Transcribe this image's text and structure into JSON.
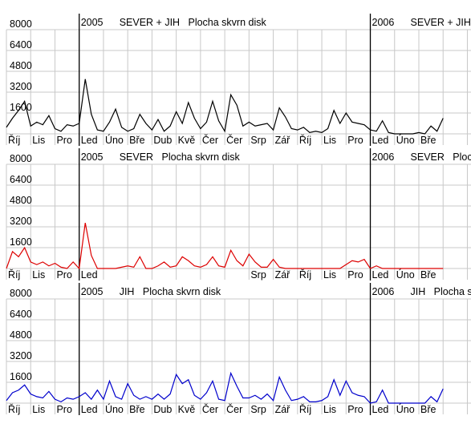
{
  "chart_data": [
    {
      "type": "line",
      "title": "SEVER + JIH   Plocha skvrn disk",
      "color": "#000000",
      "year_markers": [
        {
          "value": 3,
          "label": "2005"
        },
        {
          "value": 15,
          "label": "2006"
        }
      ],
      "xlim": [
        0,
        19.15
      ],
      "ylim": [
        0,
        8000
      ],
      "yticks": [
        1600,
        3200,
        4800,
        6400,
        8000
      ],
      "grid": true,
      "xticks": [
        {
          "value": 0,
          "label": "Říj"
        },
        {
          "value": 1,
          "label": "Lis"
        },
        {
          "value": 2,
          "label": "Pro"
        },
        {
          "value": 3,
          "label": "Led"
        },
        {
          "value": 4,
          "label": "Úno"
        },
        {
          "value": 5,
          "label": "Bře"
        },
        {
          "value": 6,
          "label": "Dub"
        },
        {
          "value": 7,
          "label": "Kvě"
        },
        {
          "value": 8,
          "label": "Čer"
        },
        {
          "value": 9,
          "label": "Čer"
        },
        {
          "value": 10,
          "label": "Srp"
        },
        {
          "value": 11,
          "label": "Zář"
        },
        {
          "value": 12,
          "label": "Říj"
        },
        {
          "value": 13,
          "label": "Lis"
        },
        {
          "value": 14,
          "label": "Pro"
        },
        {
          "value": 15,
          "label": "Led"
        },
        {
          "value": 16,
          "label": "Úno"
        },
        {
          "value": 17,
          "label": "Bře"
        },
        {
          "value": 18,
          "label": null
        },
        {
          "value": 19,
          "label": null
        }
      ],
      "x": [
        0,
        0.25,
        0.5,
        0.75,
        1,
        1.25,
        1.5,
        1.75,
        2,
        2.25,
        2.5,
        2.75,
        3,
        3.25,
        3.5,
        3.75,
        4,
        4.25,
        4.5,
        4.75,
        5,
        5.25,
        5.5,
        5.75,
        6,
        6.25,
        6.5,
        6.75,
        7,
        7.25,
        7.5,
        7.75,
        8,
        8.25,
        8.5,
        8.75,
        9,
        9.25,
        9.5,
        9.75,
        10,
        10.25,
        10.5,
        10.75,
        11,
        11.25,
        11.5,
        11.75,
        12,
        12.25,
        12.5,
        12.75,
        13,
        13.25,
        13.5,
        13.75,
        14,
        14.25,
        14.5,
        14.75,
        15,
        15.25,
        15.5,
        15.75,
        16,
        16.25,
        16.5,
        16.75,
        17,
        17.25,
        17.5,
        17.75,
        18
      ],
      "values": [
        500,
        1200,
        1800,
        2500,
        600,
        900,
        700,
        1400,
        400,
        200,
        700,
        600,
        800,
        4200,
        1500,
        300,
        200,
        900,
        1900,
        500,
        200,
        400,
        1500,
        800,
        300,
        1100,
        200,
        600,
        1700,
        800,
        2400,
        1200,
        400,
        900,
        2500,
        1000,
        200,
        3000,
        2200,
        600,
        900,
        600,
        700,
        800,
        300,
        2000,
        1300,
        400,
        300,
        500,
        100,
        200,
        100,
        400,
        1800,
        800,
        1600,
        900,
        800,
        700,
        300,
        200,
        1000,
        100,
        0,
        0,
        0,
        0,
        100,
        0,
        600,
        200,
        1200
      ]
    },
    {
      "type": "line",
      "title": "SEVER   Plocha skvrn disk",
      "color": "#dd0000",
      "year_markers": [
        {
          "value": 3,
          "label": "2005"
        },
        {
          "value": 15,
          "label": "2006"
        }
      ],
      "xlim": [
        0,
        19.15
      ],
      "ylim": [
        0,
        8000
      ],
      "yticks": [
        1600,
        3200,
        4800,
        6400,
        8000
      ],
      "grid": true,
      "xticks": [
        {
          "value": 0,
          "label": "Říj"
        },
        {
          "value": 1,
          "label": "Lis"
        },
        {
          "value": 2,
          "label": "Pro"
        },
        {
          "value": 3,
          "label": "Led"
        },
        {
          "value": 4,
          "label": null
        },
        {
          "value": 5,
          "label": null
        },
        {
          "value": 6,
          "label": null
        },
        {
          "value": 7,
          "label": null
        },
        {
          "value": 8,
          "label": null
        },
        {
          "value": 9,
          "label": null
        },
        {
          "value": 10,
          "label": "Srp"
        },
        {
          "value": 11,
          "label": "Zář"
        },
        {
          "value": 12,
          "label": "Říj"
        },
        {
          "value": 13,
          "label": "Lis"
        },
        {
          "value": 14,
          "label": "Pro"
        },
        {
          "value": 15,
          "label": "Led"
        },
        {
          "value": 16,
          "label": "Úno"
        },
        {
          "value": 17,
          "label": "Bře"
        },
        {
          "value": 18,
          "label": null
        },
        {
          "value": 19,
          "label": null
        }
      ],
      "x": [
        0,
        0.25,
        0.5,
        0.75,
        1,
        1.25,
        1.5,
        1.75,
        2,
        2.25,
        2.5,
        2.75,
        3,
        3.25,
        3.5,
        3.75,
        4,
        4.25,
        4.5,
        4.75,
        5,
        5.25,
        5.5,
        5.75,
        6,
        6.25,
        6.5,
        6.75,
        7,
        7.25,
        7.5,
        7.75,
        8,
        8.25,
        8.5,
        8.75,
        9,
        9.25,
        9.5,
        9.75,
        10,
        10.25,
        10.5,
        10.75,
        11,
        11.25,
        11.5,
        11.75,
        12,
        12.25,
        12.5,
        12.75,
        13,
        13.25,
        13.5,
        13.75,
        14,
        14.25,
        14.5,
        14.75,
        15,
        15.25,
        15.5,
        15.75,
        16,
        16.25,
        16.5,
        16.75,
        17,
        17.25,
        17.5,
        17.75,
        18
      ],
      "values": [
        0,
        1300,
        900,
        1600,
        500,
        300,
        500,
        200,
        400,
        100,
        0,
        500,
        0,
        3500,
        1000,
        0,
        0,
        0,
        0,
        100,
        200,
        100,
        900,
        0,
        0,
        200,
        500,
        100,
        200,
        900,
        600,
        200,
        100,
        300,
        900,
        200,
        100,
        1400,
        600,
        200,
        1100,
        500,
        100,
        100,
        700,
        100,
        0,
        0,
        0,
        0,
        0,
        0,
        0,
        0,
        0,
        0,
        300,
        600,
        500,
        700,
        0,
        200,
        0,
        0,
        0,
        0,
        0,
        0,
        0,
        0,
        0,
        0,
        0
      ]
    },
    {
      "type": "line",
      "title": "JIH   Plocha skvrn disk",
      "color": "#0000cc",
      "year_markers": [
        {
          "value": 3,
          "label": "2005"
        },
        {
          "value": 15,
          "label": "2006"
        }
      ],
      "xlim": [
        0,
        19.15
      ],
      "ylim": [
        0,
        8000
      ],
      "yticks": [
        1600,
        3200,
        4800,
        6400,
        8000
      ],
      "grid": true,
      "xticks": [
        {
          "value": 0,
          "label": "Říj"
        },
        {
          "value": 1,
          "label": "Lis"
        },
        {
          "value": 2,
          "label": "Pro"
        },
        {
          "value": 3,
          "label": "Led"
        },
        {
          "value": 4,
          "label": "Úno"
        },
        {
          "value": 5,
          "label": "Bře"
        },
        {
          "value": 6,
          "label": "Dub"
        },
        {
          "value": 7,
          "label": "Kvě"
        },
        {
          "value": 8,
          "label": "Čer"
        },
        {
          "value": 9,
          "label": "Čer"
        },
        {
          "value": 10,
          "label": "Srp"
        },
        {
          "value": 11,
          "label": "Zář"
        },
        {
          "value": 12,
          "label": "Říj"
        },
        {
          "value": 13,
          "label": "Lis"
        },
        {
          "value": 14,
          "label": "Pro"
        },
        {
          "value": 15,
          "label": "Led"
        },
        {
          "value": 16,
          "label": "Úno"
        },
        {
          "value": 17,
          "label": "Bře"
        },
        {
          "value": 18,
          "label": null
        },
        {
          "value": 19,
          "label": null
        }
      ],
      "x": [
        0,
        0.25,
        0.5,
        0.75,
        1,
        1.25,
        1.5,
        1.75,
        2,
        2.25,
        2.5,
        2.75,
        3,
        3.25,
        3.5,
        3.75,
        4,
        4.25,
        4.5,
        4.75,
        5,
        5.25,
        5.5,
        5.75,
        6,
        6.25,
        6.5,
        6.75,
        7,
        7.25,
        7.5,
        7.75,
        8,
        8.25,
        8.5,
        8.75,
        9,
        9.25,
        9.5,
        9.75,
        10,
        10.25,
        10.5,
        10.75,
        11,
        11.25,
        11.5,
        11.75,
        12,
        12.25,
        12.5,
        12.75,
        13,
        13.25,
        13.5,
        13.75,
        14,
        14.25,
        14.5,
        14.75,
        15,
        15.25,
        15.5,
        15.75,
        16,
        16.25,
        16.5,
        16.75,
        17,
        17.25,
        17.5,
        17.75,
        18
      ],
      "values": [
        200,
        800,
        1000,
        1400,
        700,
        500,
        400,
        900,
        300,
        100,
        400,
        300,
        500,
        800,
        300,
        1000,
        300,
        1700,
        500,
        300,
        1500,
        600,
        300,
        500,
        300,
        700,
        300,
        700,
        2200,
        1500,
        1800,
        600,
        300,
        800,
        1700,
        300,
        200,
        2300,
        1300,
        400,
        400,
        600,
        300,
        700,
        200,
        2000,
        1000,
        200,
        300,
        500,
        100,
        100,
        200,
        500,
        1800,
        600,
        1700,
        800,
        600,
        500,
        0,
        100,
        1000,
        0,
        0,
        0,
        0,
        0,
        0,
        0,
        500,
        100,
        1100
      ]
    }
  ]
}
